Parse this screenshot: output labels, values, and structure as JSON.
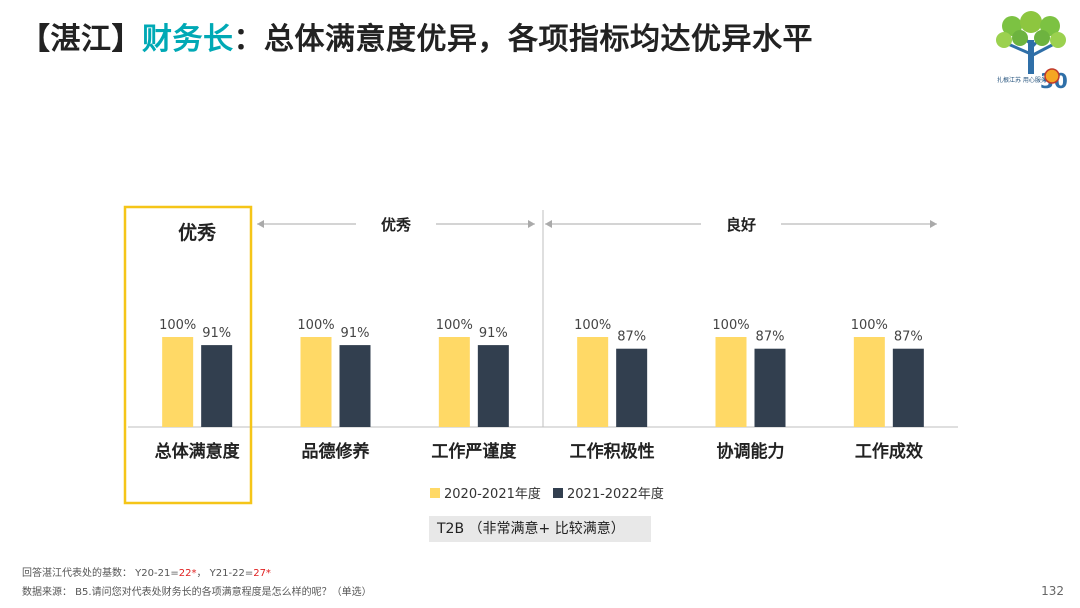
{
  "title": {
    "bracket_text": "【湛江】",
    "role": "财务长",
    "rest": "：总体满意度优异，各项指标均达优异水平"
  },
  "logo": {
    "text": "扎根江苏 用心服务",
    "number": "30"
  },
  "chart_data": {
    "type": "bar",
    "categories": [
      "总体满意度",
      "品德修养",
      "工作严谨度",
      "工作积极性",
      "协调能力",
      "工作成效"
    ],
    "series": [
      {
        "name": "2020-2021年度",
        "values": [
          100,
          100,
          100,
          100,
          100,
          100
        ],
        "labels": [
          "100%",
          "100%",
          "100%",
          "100%",
          "100%",
          "100%"
        ],
        "color": "#ffd966"
      },
      {
        "name": "2021-2022年度",
        "values": [
          91,
          91,
          91,
          87,
          87,
          87
        ],
        "labels": [
          "91%",
          "91%",
          "91%",
          "87%",
          "87%",
          "87%"
        ],
        "color": "#323f4f"
      }
    ],
    "ylim": [
      0,
      100
    ],
    "grid": false,
    "legend_position": "bottom",
    "groups": [
      {
        "label": "优秀",
        "categories": [
          0
        ],
        "highlighted": true
      },
      {
        "label": "优秀",
        "categories": [
          1,
          2
        ]
      },
      {
        "label": "良好",
        "categories": [
          3,
          4,
          5
        ]
      }
    ],
    "highlight_color": "#f5c518",
    "axis_color": "#bfbfbf"
  },
  "t2b_label": "T2B （非常满意+ 比较满意）",
  "footnotes": {
    "base_prefix": "回答湛江代表处的基数：  Y20-21=",
    "base_y20": "22*",
    "base_mid": "，  Y21-22=",
    "base_y21": "27*",
    "source": "数据来源：  B5.请问您对代表处财务长的各项满意程度是怎么样的呢？（单选）"
  },
  "page_number": "132"
}
